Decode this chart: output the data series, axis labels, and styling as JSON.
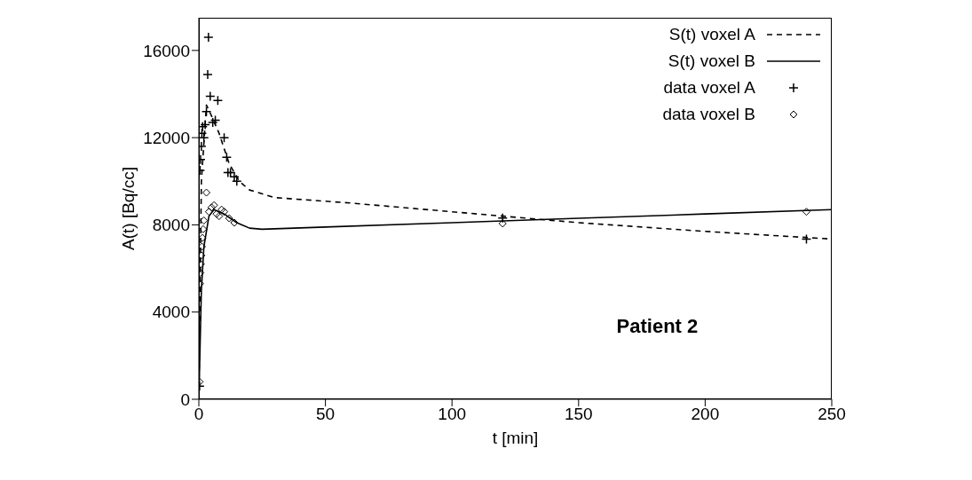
{
  "chart_data": {
    "type": "line",
    "xlabel": "t [min]",
    "ylabel": "A(t) [Bq/cc]",
    "xlim": [
      0,
      250
    ],
    "xticks": [
      0,
      50,
      100,
      150,
      200,
      250
    ],
    "ylim": [
      0,
      17500
    ],
    "yticks": [
      0,
      4000,
      8000,
      12000,
      16000
    ],
    "grid": false,
    "legend": "top right",
    "annotations": [
      "Patient 2"
    ],
    "series": [
      {
        "name": "S(t) voxel A",
        "line_style": "dashed",
        "marker": "none",
        "color": "#000000",
        "x": [
          0,
          1,
          3,
          5,
          8,
          12,
          16,
          20,
          30,
          60,
          100,
          150,
          200,
          250
        ],
        "values": [
          0,
          10000,
          13500,
          13000,
          12200,
          10800,
          10000,
          9600,
          9250,
          9000,
          8600,
          8100,
          7700,
          7350
        ]
      },
      {
        "name": "S(t) voxel B",
        "line_style": "solid",
        "marker": "none",
        "color": "#000000",
        "x": [
          0,
          1,
          2,
          4,
          6,
          10,
          15,
          20,
          25,
          50,
          100,
          150,
          200,
          250
        ],
        "values": [
          0,
          5000,
          7000,
          8400,
          8700,
          8500,
          8100,
          7850,
          7800,
          7900,
          8100,
          8300,
          8500,
          8700
        ]
      },
      {
        "name": "data voxel A",
        "type": "scatter",
        "marker": "cross",
        "color": "#000000",
        "x": [
          0.3,
          0.5,
          0.7,
          1,
          1.2,
          1.5,
          2,
          2.5,
          3,
          3.5,
          3.8,
          4.5,
          5.5,
          6.5,
          7.5,
          10,
          11,
          11.5,
          12.5,
          14,
          15,
          120,
          240
        ],
        "values": [
          600,
          10500,
          11000,
          11600,
          12200,
          12500,
          12000,
          12600,
          13200,
          14900,
          16600,
          13900,
          12700,
          12800,
          13700,
          12000,
          11100,
          10400,
          10400,
          10200,
          10000,
          8310,
          7350
        ]
      },
      {
        "name": "data voxel B",
        "type": "scatter",
        "marker": "diamond",
        "color": "#000000",
        "x": [
          0.3,
          0.5,
          0.6,
          0.8,
          1,
          1.2,
          1.4,
          1.7,
          2,
          3,
          4,
          5,
          6,
          7,
          8,
          9,
          10,
          12,
          14,
          120,
          240
        ],
        "values": [
          800,
          5300,
          5800,
          6200,
          6600,
          7000,
          7400,
          7800,
          8200,
          9480,
          8600,
          8800,
          8900,
          8500,
          8400,
          8700,
          8600,
          8300,
          8100,
          8060,
          8600
        ]
      }
    ]
  }
}
